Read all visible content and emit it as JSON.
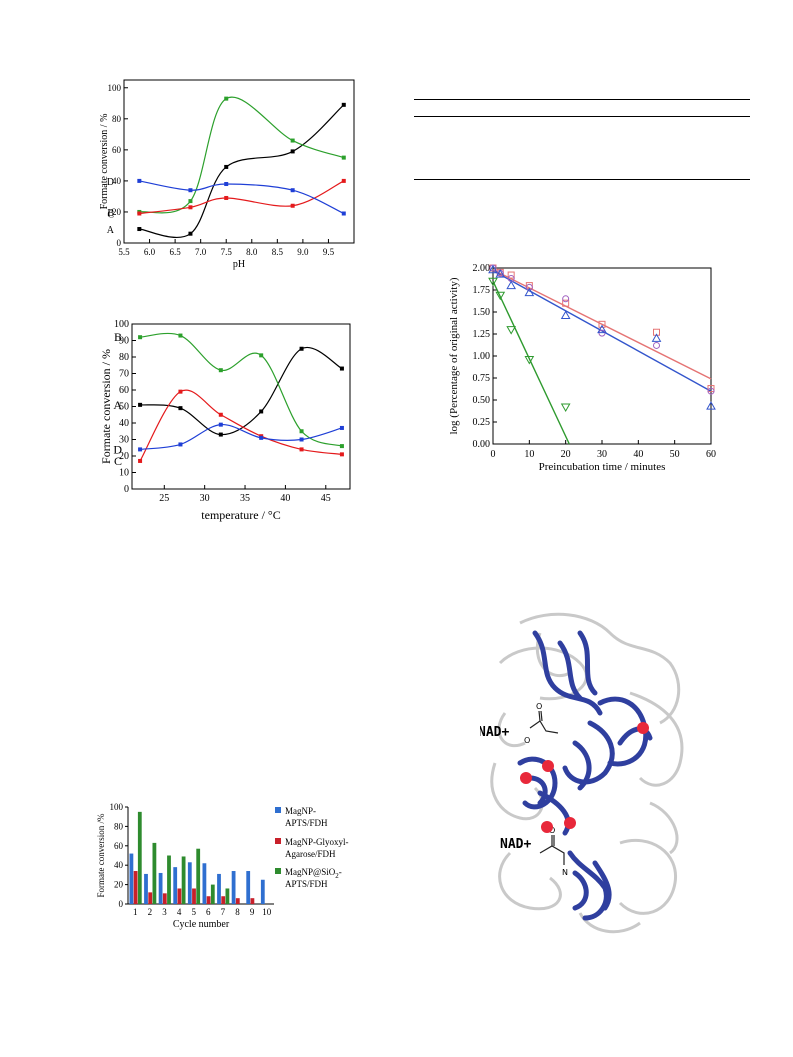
{
  "chart_data": [
    {
      "type": "scatter",
      "xlabel": "pH",
      "ylabel": "Formate conversion / %",
      "xlim": [
        5.5,
        10.0
      ],
      "ylim": [
        0,
        105
      ],
      "xticks": [
        "5.5",
        "6.0",
        "6.5",
        "7.0",
        "7.5",
        "8.0",
        "8.5",
        "9.0",
        "9.5"
      ],
      "yticks": [
        "0",
        "20",
        "40",
        "60",
        "80",
        "100"
      ],
      "series": [
        {
          "name": "A",
          "color": "#000000",
          "x": [
            5.8,
            6.8,
            7.5,
            8.8,
            9.8
          ],
          "y": [
            9,
            6,
            49,
            59,
            89
          ]
        },
        {
          "name": "B",
          "color": "#2ca02c",
          "x": [
            5.8,
            6.8,
            7.5,
            8.8,
            9.8
          ],
          "y": [
            20,
            27,
            93,
            66,
            55
          ]
        },
        {
          "name": "C",
          "color": "#e41a1c",
          "x": [
            5.8,
            6.8,
            7.5,
            8.8,
            9.8
          ],
          "y": [
            19,
            23,
            29,
            24,
            40
          ]
        },
        {
          "name": "D",
          "color": "#1f3fd6",
          "x": [
            5.8,
            6.8,
            7.5,
            8.8,
            9.8
          ],
          "y": [
            40,
            34,
            38,
            34,
            19
          ]
        }
      ],
      "smooth": true,
      "grid": false
    },
    {
      "type": "scatter",
      "xlabel": "temperature / °C",
      "ylabel": "Formate conversion / %",
      "xlim": [
        21,
        48
      ],
      "ylim": [
        0,
        100
      ],
      "xticks": [
        "25",
        "30",
        "35",
        "40",
        "45"
      ],
      "yticks": [
        "0",
        "10",
        "20",
        "30",
        "40",
        "50",
        "60",
        "70",
        "80",
        "90",
        "100"
      ],
      "series": [
        {
          "name": "A",
          "color": "#000000",
          "x": [
            22,
            27,
            32,
            37,
            42,
            47
          ],
          "y": [
            51,
            49,
            33,
            47,
            85,
            73
          ]
        },
        {
          "name": "B",
          "color": "#2ca02c",
          "x": [
            22,
            27,
            32,
            37,
            42,
            47
          ],
          "y": [
            92,
            93,
            72,
            81,
            35,
            26
          ]
        },
        {
          "name": "C",
          "color": "#e41a1c",
          "x": [
            22,
            27,
            32,
            37,
            42,
            47
          ],
          "y": [
            17,
            59,
            45,
            32,
            24,
            21
          ]
        },
        {
          "name": "D",
          "color": "#1f3fd6",
          "x": [
            22,
            27,
            32,
            37,
            42,
            47
          ],
          "y": [
            24,
            27,
            39,
            31,
            30,
            37
          ]
        }
      ],
      "smooth": true,
      "grid": false
    },
    {
      "type": "scatter",
      "xlabel": "Preincubation time / minutes",
      "ylabel": "log (Percentage of original activity)",
      "xlim": [
        0,
        60
      ],
      "ylim": [
        0,
        2.0
      ],
      "xticks": [
        "0",
        "10",
        "20",
        "30",
        "40",
        "50",
        "60"
      ],
      "yticks": [
        "0.00",
        "0.25",
        "0.50",
        "0.75",
        "1.00",
        "1.25",
        "1.50",
        "1.75",
        "2.00"
      ],
      "series": [
        {
          "color": "#e57373",
          "marker": "square",
          "x": [
            0,
            2,
            5,
            10,
            20,
            30,
            45,
            60
          ],
          "y": [
            2.0,
            1.95,
            1.92,
            1.8,
            1.6,
            1.36,
            1.27,
            0.63
          ]
        },
        {
          "color": "#a060c0",
          "marker": "circle",
          "x": [
            0,
            2,
            5,
            10,
            20,
            30,
            45,
            60
          ],
          "y": [
            2.0,
            1.94,
            1.88,
            1.78,
            1.65,
            1.26,
            1.12,
            0.6
          ]
        },
        {
          "color": "#3355cc",
          "marker": "triangle-up",
          "x": [
            0,
            2,
            5,
            10,
            20,
            30,
            45,
            60
          ],
          "y": [
            1.98,
            1.93,
            1.8,
            1.72,
            1.46,
            1.3,
            1.2,
            0.43
          ]
        },
        {
          "color": "#2e9a2e",
          "marker": "triangle-down",
          "x": [
            0,
            2,
            5,
            10,
            20
          ],
          "y": [
            1.85,
            1.69,
            1.3,
            0.96,
            0.42
          ]
        }
      ],
      "fits": [
        {
          "color": "#e57373",
          "x": [
            0,
            60
          ],
          "y": [
            1.98,
            0.74
          ]
        },
        {
          "color": "#3355cc",
          "x": [
            0,
            60
          ],
          "y": [
            1.97,
            0.6
          ]
        },
        {
          "color": "#2e9a2e",
          "x": [
            0,
            21
          ],
          "y": [
            1.85,
            0.0
          ]
        }
      ],
      "grid": false
    },
    {
      "type": "bar",
      "xlabel": "Cycle number",
      "ylabel": "Formate conversion /%",
      "categories": [
        "1",
        "2",
        "3",
        "4",
        "5",
        "6",
        "7",
        "8",
        "9",
        "10"
      ],
      "ylim": [
        0,
        100
      ],
      "yticks": [
        "0",
        "20",
        "40",
        "60",
        "80",
        "100"
      ],
      "legend_position": "right",
      "series": [
        {
          "name": "MagNP-APTS/FDH",
          "color": "#2f6fd0",
          "values": [
            52,
            31,
            32,
            38,
            43,
            42,
            31,
            34,
            34,
            25
          ]
        },
        {
          "name": "MagNP-Glyoxyl-Agarose/FDH",
          "color": "#c8202a",
          "values": [
            34,
            12,
            11,
            16,
            16,
            8,
            8,
            6,
            6,
            0
          ]
        },
        {
          "name": "MagNP@SiO2-APTS/FDH",
          "color": "#2e8b2e",
          "values": [
            95,
            63,
            50,
            49,
            57,
            20,
            16,
            0,
            0,
            0
          ]
        }
      ],
      "legend_labels": [
        [
          "MagNP-",
          "APTS/FDH"
        ],
        [
          "MagNP-Glyoxyl-",
          "Agarose/FDH"
        ],
        [
          "MagNP@SiO",
          "2",
          "-",
          "APTS/FDH"
        ]
      ]
    }
  ],
  "figure": {
    "labels": {
      "nad_top": "NAD+",
      "nad_bottom": "NAD+",
      "o_minus": "O",
      "o_label": "O",
      "n_label": "N"
    },
    "colors": {
      "protein_blue": "#2f3f9f",
      "protein_grey": "#c9c9c9",
      "binding_site": "#e8283a"
    }
  }
}
